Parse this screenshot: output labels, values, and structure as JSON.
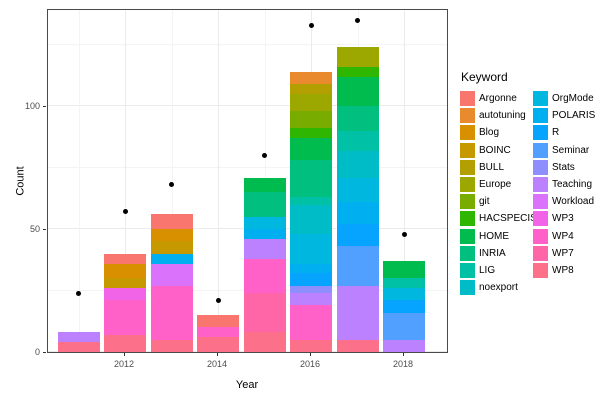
{
  "chart_data": {
    "type": "bar",
    "stacked": true,
    "xlabel": "Year",
    "ylabel": "Count",
    "legend_title": "Keyword",
    "legend_position": "right",
    "grid": true,
    "x_years": [
      2011,
      2012,
      2013,
      2014,
      2015,
      2016,
      2017,
      2018
    ],
    "x_tick_labels": [
      "2012",
      "2014",
      "2016",
      "2018"
    ],
    "x_tick_years": [
      2012,
      2014,
      2016,
      2018
    ],
    "x_minor_years": [
      2011,
      2013,
      2015,
      2017
    ],
    "y_tick_labels": [
      "0",
      "50",
      "100"
    ],
    "y_ticks": [
      0,
      50,
      100
    ],
    "y_minor_ticks": [
      25,
      75,
      125
    ],
    "ylim": [
      0,
      140
    ],
    "keywords": [
      {
        "name": "Argonne",
        "color": "#F8766D"
      },
      {
        "name": "autotuning",
        "color": "#E98A2E"
      },
      {
        "name": "Blog",
        "color": "#D99000"
      },
      {
        "name": "BOINC",
        "color": "#C79900"
      },
      {
        "name": "BULL",
        "color": "#B3A000"
      },
      {
        "name": "Europe",
        "color": "#9CA700"
      },
      {
        "name": "git",
        "color": "#78AD00"
      },
      {
        "name": "HACSPECIS",
        "color": "#2FB600"
      },
      {
        "name": "HOME",
        "color": "#00BB4E"
      },
      {
        "name": "INRIA",
        "color": "#00BF7F"
      },
      {
        "name": "LIG",
        "color": "#00C0A5"
      },
      {
        "name": "noexport",
        "color": "#00BCC6"
      },
      {
        "name": "OrgMode",
        "color": "#00B8DF"
      },
      {
        "name": "POLARIS",
        "color": "#00AFF0"
      },
      {
        "name": "R",
        "color": "#06A4FF"
      },
      {
        "name": "Seminar",
        "color": "#519FFF"
      },
      {
        "name": "Stats",
        "color": "#8E8EFF"
      },
      {
        "name": "Teaching",
        "color": "#BC81FF"
      },
      {
        "name": "Workload",
        "color": "#DB72FB"
      },
      {
        "name": "WP3",
        "color": "#F163E7"
      },
      {
        "name": "WP4",
        "color": "#FF61C9"
      },
      {
        "name": "WP7",
        "color": "#FF66A8"
      },
      {
        "name": "WP8",
        "color": "#FC7189"
      }
    ],
    "bars": [
      {
        "year": 2011,
        "total": 8,
        "segments_bottom_to_top": [
          {
            "keyword": "WP8",
            "value": 4
          },
          {
            "keyword": "Teaching",
            "value": 4
          }
        ]
      },
      {
        "year": 2012,
        "total": 40,
        "segments_bottom_to_top": [
          {
            "keyword": "WP8",
            "value": 7
          },
          {
            "keyword": "WP4",
            "value": 14
          },
          {
            "keyword": "WP3",
            "value": 5
          },
          {
            "keyword": "BOINC",
            "value": 4
          },
          {
            "keyword": "Blog",
            "value": 6
          },
          {
            "keyword": "Argonne",
            "value": 4
          }
        ]
      },
      {
        "year": 2013,
        "total": 56,
        "segments_bottom_to_top": [
          {
            "keyword": "WP8",
            "value": 5
          },
          {
            "keyword": "WP4",
            "value": 22
          },
          {
            "keyword": "Workload",
            "value": 9
          },
          {
            "keyword": "POLARIS",
            "value": 4
          },
          {
            "keyword": "BOINC",
            "value": 5
          },
          {
            "keyword": "Blog",
            "value": 5
          },
          {
            "keyword": "Argonne",
            "value": 6
          }
        ]
      },
      {
        "year": 2014,
        "total": 15,
        "segments_bottom_to_top": [
          {
            "keyword": "WP8",
            "value": 6
          },
          {
            "keyword": "WP4",
            "value": 4
          },
          {
            "keyword": "Argonne",
            "value": 5
          }
        ]
      },
      {
        "year": 2015,
        "total": 71,
        "segments_bottom_to_top": [
          {
            "keyword": "WP8",
            "value": 8
          },
          {
            "keyword": "WP7",
            "value": 16
          },
          {
            "keyword": "WP4",
            "value": 14
          },
          {
            "keyword": "Teaching",
            "value": 8
          },
          {
            "keyword": "POLARIS",
            "value": 4
          },
          {
            "keyword": "OrgMode",
            "value": 5
          },
          {
            "keyword": "INRIA",
            "value": 10
          },
          {
            "keyword": "HOME",
            "value": 6
          }
        ]
      },
      {
        "year": 2016,
        "total": 114,
        "segments_bottom_to_top": [
          {
            "keyword": "WP8",
            "value": 5
          },
          {
            "keyword": "WP4",
            "value": 14
          },
          {
            "keyword": "Teaching",
            "value": 5
          },
          {
            "keyword": "Stats",
            "value": 3
          },
          {
            "keyword": "R",
            "value": 5
          },
          {
            "keyword": "POLARIS",
            "value": 4
          },
          {
            "keyword": "OrgMode",
            "value": 12
          },
          {
            "keyword": "noexport",
            "value": 12
          },
          {
            "keyword": "LIG",
            "value": 3
          },
          {
            "keyword": "INRIA",
            "value": 15
          },
          {
            "keyword": "HOME",
            "value": 9
          },
          {
            "keyword": "HACSPECIS",
            "value": 4
          },
          {
            "keyword": "git",
            "value": 7
          },
          {
            "keyword": "Europe",
            "value": 7
          },
          {
            "keyword": "BULL",
            "value": 4
          },
          {
            "keyword": "autotuning",
            "value": 5
          }
        ]
      },
      {
        "year": 2017,
        "total": 124,
        "segments_bottom_to_top": [
          {
            "keyword": "WP8",
            "value": 5
          },
          {
            "keyword": "Teaching",
            "value": 22
          },
          {
            "keyword": "Seminar",
            "value": 16
          },
          {
            "keyword": "R",
            "value": 9
          },
          {
            "keyword": "POLARIS",
            "value": 9
          },
          {
            "keyword": "OrgMode",
            "value": 10
          },
          {
            "keyword": "noexport",
            "value": 11
          },
          {
            "keyword": "LIG",
            "value": 8
          },
          {
            "keyword": "INRIA",
            "value": 10
          },
          {
            "keyword": "HOME",
            "value": 12
          },
          {
            "keyword": "HACSPECIS",
            "value": 4
          },
          {
            "keyword": "Europe",
            "value": 8
          }
        ]
      },
      {
        "year": 2018,
        "total": 37,
        "segments_bottom_to_top": [
          {
            "keyword": "Teaching",
            "value": 5
          },
          {
            "keyword": "Seminar",
            "value": 11
          },
          {
            "keyword": "R",
            "value": 5
          },
          {
            "keyword": "OrgMode",
            "value": 5
          },
          {
            "keyword": "LIG",
            "value": 4
          },
          {
            "keyword": "HOME",
            "value": 7
          }
        ]
      }
    ],
    "points": [
      {
        "year": 2011,
        "value": 24
      },
      {
        "year": 2012,
        "value": 57
      },
      {
        "year": 2013,
        "value": 68
      },
      {
        "year": 2014,
        "value": 21
      },
      {
        "year": 2015,
        "value": 80
      },
      {
        "year": 2016,
        "value": 133
      },
      {
        "year": 2017,
        "value": 135
      },
      {
        "year": 2018,
        "value": 48
      }
    ]
  }
}
